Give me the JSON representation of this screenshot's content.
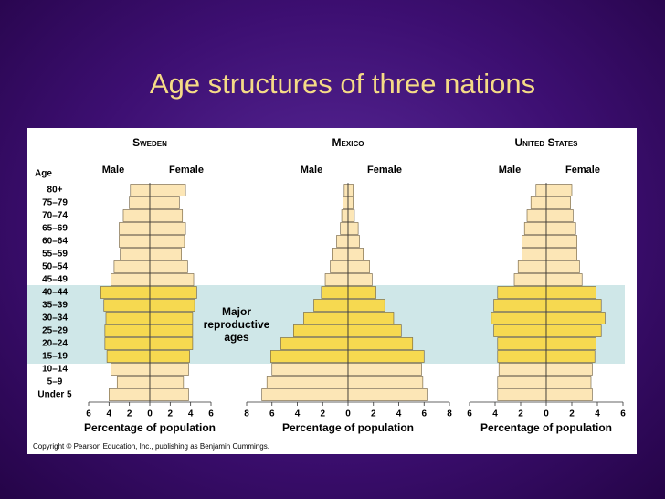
{
  "title": "Age structures of three nations",
  "copyright": "Copyright © Pearson Education, Inc., publishing as Benjamin Cummings.",
  "annotation": "Major reproductive ages",
  "highlight": [
    "40–44",
    "15–19"
  ],
  "highlight_band_color": "#cfe7e8",
  "highlight_bar_color": "#f6d950",
  "chart_data": [
    {
      "type": "pyramid",
      "title": "Sweden",
      "age_label": "Age",
      "categories": [
        "80+",
        "75–79",
        "70–74",
        "65–69",
        "60–64",
        "55–59",
        "50–54",
        "45–49",
        "40–44",
        "35–39",
        "30–34",
        "25–29",
        "20–24",
        "15–19",
        "10–14",
        "5–9",
        "Under 5"
      ],
      "series": [
        {
          "name": "Male",
          "color": "#fce6b6",
          "values": [
            1.9,
            2.0,
            2.6,
            3.0,
            3.0,
            2.9,
            3.5,
            3.8,
            4.8,
            4.5,
            4.3,
            4.4,
            4.4,
            4.2,
            3.8,
            3.2,
            4.0
          ]
        },
        {
          "name": "Female",
          "color": "#fce6b6",
          "values": [
            3.5,
            2.9,
            3.2,
            3.5,
            3.4,
            3.1,
            3.7,
            4.3,
            4.6,
            4.4,
            4.2,
            4.2,
            4.2,
            3.9,
            3.8,
            3.3,
            3.8
          ]
        }
      ],
      "xlabel": "Percentage of population",
      "xlim": [
        -6,
        6
      ],
      "xticks": [
        {
          "value": -6,
          "label": "6"
        },
        {
          "value": -4,
          "label": "4"
        },
        {
          "value": -2,
          "label": "2"
        },
        0,
        2,
        4,
        6
      ]
    },
    {
      "type": "pyramid",
      "title": "Mexico",
      "series": [
        {
          "name": "Male",
          "color": "#fce6b6",
          "values": [
            0.3,
            0.4,
            0.5,
            0.6,
            0.9,
            1.2,
            1.4,
            1.8,
            2.1,
            2.7,
            3.5,
            4.3,
            5.3,
            6.1,
            6.0,
            6.4,
            6.8
          ]
        },
        {
          "name": "Female",
          "color": "#fce6b6",
          "values": [
            0.4,
            0.4,
            0.5,
            0.8,
            0.9,
            1.2,
            1.7,
            1.9,
            2.2,
            2.9,
            3.6,
            4.2,
            5.1,
            6.0,
            5.8,
            5.9,
            6.3
          ]
        }
      ],
      "xlabel": "Percentage of population",
      "xlim": [
        -8,
        8
      ],
      "xticks": [
        {
          "value": -8,
          "label": "8"
        },
        {
          "value": -6,
          "label": "6"
        },
        {
          "value": -4,
          "label": "4"
        },
        {
          "value": -2,
          "label": "2"
        },
        0,
        2,
        4,
        6,
        8
      ]
    },
    {
      "type": "pyramid",
      "title": "United States",
      "series": [
        {
          "name": "Male",
          "color": "#fce6b6",
          "values": [
            0.8,
            1.2,
            1.5,
            1.7,
            1.9,
            1.9,
            2.2,
            2.5,
            3.8,
            4.1,
            4.3,
            4.1,
            3.8,
            3.8,
            3.7,
            3.8,
            3.8
          ]
        },
        {
          "name": "Female",
          "color": "#fce6b6",
          "values": [
            2.0,
            1.9,
            2.1,
            2.3,
            2.4,
            2.4,
            2.6,
            2.8,
            3.9,
            4.3,
            4.6,
            4.3,
            3.9,
            3.8,
            3.6,
            3.5,
            3.6
          ]
        }
      ],
      "xlabel": "Percentage of population",
      "xlim": [
        -6,
        6
      ],
      "xticks": [
        {
          "value": -6,
          "label": "6"
        },
        {
          "value": -4,
          "label": "4"
        },
        {
          "value": -2,
          "label": "2"
        },
        0,
        2,
        4,
        6
      ]
    }
  ]
}
